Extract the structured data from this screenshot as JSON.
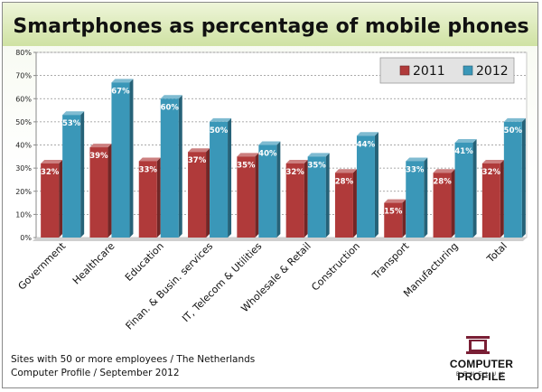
{
  "chart_data": {
    "type": "bar",
    "title": "Smartphones as percentage of mobile phones",
    "categories": [
      "Government",
      "Healthcare",
      "Education",
      "Finan. & Busin. services",
      "IT, Telecom & Utilities",
      "Wholesale & Retail",
      "Construction",
      "Transport",
      "Manufacturing",
      "Total"
    ],
    "series": [
      {
        "name": "2011",
        "values": [
          32,
          39,
          33,
          37,
          35,
          32,
          28,
          15,
          28,
          32
        ],
        "color": "#b03a3a"
      },
      {
        "name": "2012",
        "values": [
          53,
          67,
          60,
          50,
          40,
          35,
          44,
          33,
          41,
          50
        ],
        "color": "#3a97b8"
      }
    ],
    "data_labels": {
      "2011": [
        "32%",
        "39%",
        "33%",
        "37%",
        "35%",
        "32%",
        "28%",
        "15%",
        "28%",
        "32%"
      ],
      "2012": [
        "53%",
        "67%",
        "60%",
        "50%",
        "40%",
        "35%",
        "44%",
        "33%",
        "41%",
        "50%"
      ]
    },
    "y_ticks": [
      "0%",
      "10%",
      "20%",
      "30%",
      "40%",
      "50%",
      "60%",
      "70%",
      "80%"
    ],
    "ylim": [
      0,
      80
    ],
    "xlabel": "",
    "ylabel": "",
    "grid": true,
    "legend": "top-right",
    "bar_style": "3d"
  },
  "footer": {
    "line1": "Sites with 50 or more employees / The Netherlands",
    "line2": "Computer Profile / September 2012"
  },
  "logo": {
    "name": "COMPUTER PROFILE",
    "sub": "BENELUX",
    "color": "#7a1f35"
  }
}
